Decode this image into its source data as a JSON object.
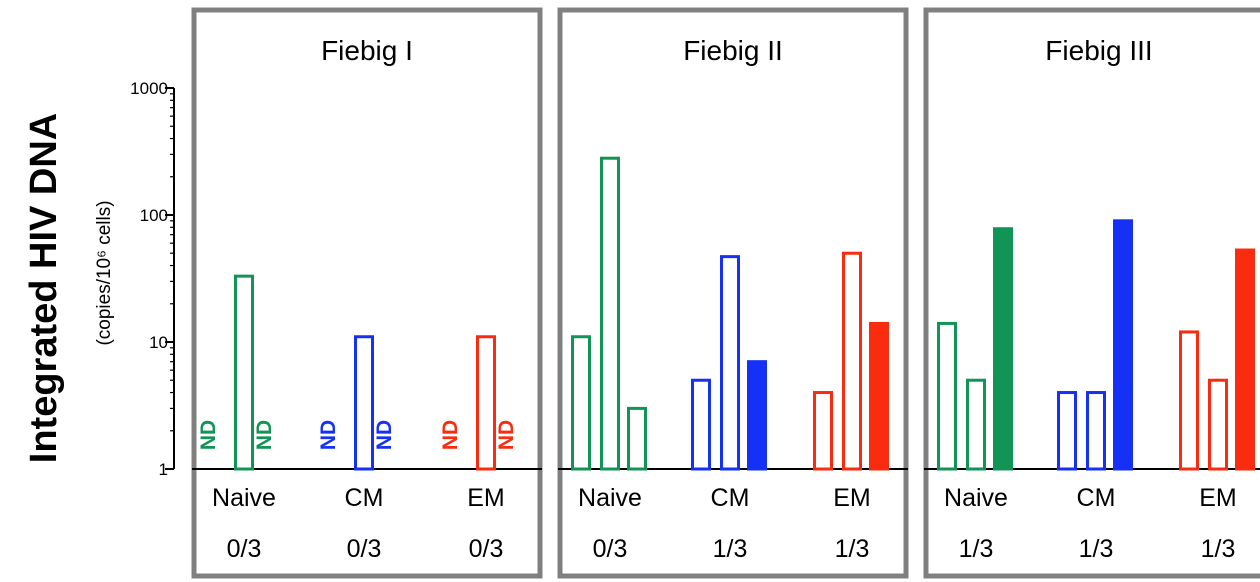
{
  "chart_data": {
    "type": "bar",
    "yscale": "log",
    "ylim": [
      1,
      1000
    ],
    "yticks": [
      "1",
      "10",
      "100",
      "1000"
    ],
    "ylabel": "Integrated HIV DNA",
    "ylabel_sub": "(copies/10⁶ cells)",
    "colors": {
      "Naive": "#129457",
      "CM": "#1531f5",
      "EM": "#fa2c10"
    },
    "panels": [
      {
        "title": "Fiebig I",
        "groups": [
          {
            "category": "Naive",
            "fraction": "0/3",
            "bars": [
              {
                "value": null,
                "label": "ND",
                "filled": false
              },
              {
                "value": 33,
                "filled": false
              },
              {
                "value": null,
                "label": "ND",
                "filled": false
              }
            ]
          },
          {
            "category": "CM",
            "fraction": "0/3",
            "bars": [
              {
                "value": null,
                "label": "ND",
                "filled": false
              },
              {
                "value": 11,
                "filled": false
              },
              {
                "value": null,
                "label": "ND",
                "filled": false
              }
            ]
          },
          {
            "category": "EM",
            "fraction": "0/3",
            "bars": [
              {
                "value": null,
                "label": "ND",
                "filled": false
              },
              {
                "value": 11,
                "filled": false
              },
              {
                "value": null,
                "label": "ND",
                "filled": false
              }
            ]
          }
        ]
      },
      {
        "title": "Fiebig II",
        "groups": [
          {
            "category": "Naive",
            "fraction": "0/3",
            "bars": [
              {
                "value": 11,
                "filled": false
              },
              {
                "value": 280,
                "filled": false
              },
              {
                "value": 3,
                "filled": false
              }
            ]
          },
          {
            "category": "CM",
            "fraction": "1/3",
            "bars": [
              {
                "value": 5,
                "filled": false
              },
              {
                "value": 47,
                "filled": false
              },
              {
                "value": 7,
                "filled": true
              }
            ]
          },
          {
            "category": "EM",
            "fraction": "1/3",
            "bars": [
              {
                "value": 4,
                "filled": false
              },
              {
                "value": 50,
                "filled": false
              },
              {
                "value": 14,
                "filled": true
              }
            ]
          }
        ]
      },
      {
        "title": "Fiebig III",
        "groups": [
          {
            "category": "Naive",
            "fraction": "1/3",
            "bars": [
              {
                "value": 14,
                "filled": false
              },
              {
                "value": 5,
                "filled": false
              },
              {
                "value": 78,
                "filled": true
              }
            ]
          },
          {
            "category": "CM",
            "fraction": "1/3",
            "bars": [
              {
                "value": 4,
                "filled": false
              },
              {
                "value": 4,
                "filled": false
              },
              {
                "value": 90,
                "filled": true
              }
            ]
          },
          {
            "category": "EM",
            "fraction": "1/3",
            "bars": [
              {
                "value": 12,
                "filled": false
              },
              {
                "value": 5,
                "filled": false
              },
              {
                "value": 53,
                "filled": true
              }
            ]
          }
        ]
      }
    ]
  }
}
